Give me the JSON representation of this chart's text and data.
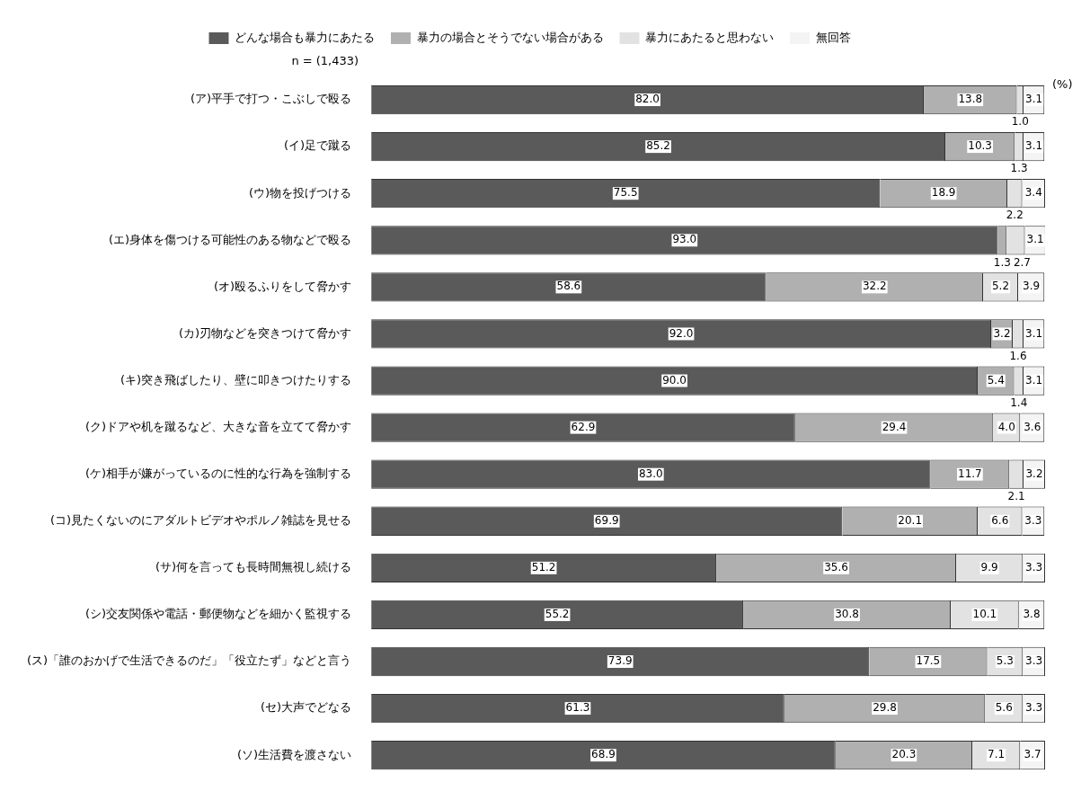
{
  "chart_data": {
    "type": "bar",
    "orientation": "horizontal",
    "stacked": true,
    "legend": "top",
    "grid": false,
    "tick_labels": "y",
    "xlim": [
      0,
      100
    ],
    "annotations": [
      "n = (1,433)",
      "(%)"
    ],
    "categories": [
      "(ア)平手で打つ・こぶしで殴る",
      "(イ)足で蹴る",
      "(ウ)物を投げつける",
      "(エ)身体を傷つける可能性のある物などで殴る",
      "(オ)殴るふりをして脅かす",
      "(カ)刃物などを突きつけて脅かす",
      "(キ)突き飛ばしたり、壁に叩きつけたりする",
      "(ク)ドアや机を蹴るなど、大きな音を立てて脅かす",
      "(ケ)相手が嫌がっているのに性的な行為を強制する",
      "(コ)見たくないのにアダルトビデオやポルノ雑誌を見せる",
      "(サ)何を言っても長時間無視し続ける",
      "(シ)交友関係や電話・郵便物などを細かく監視する",
      "(ス)「誰のおかげで生活できるのだ」「役立たず」などと言う",
      "(セ)大声でどなる",
      "(ソ)生活費を渡さない"
    ],
    "series": [
      {
        "name": "どんな場合も暴力にあたる",
        "color": "#5a5a5a",
        "values": [
          82.0,
          85.2,
          75.5,
          93.0,
          58.6,
          92.0,
          90.0,
          62.9,
          83.0,
          69.9,
          51.2,
          55.2,
          73.9,
          61.3,
          68.9
        ],
        "value_labels": [
          "82.0",
          "85.2",
          "75.5",
          "93.0",
          "58.6",
          "92.0",
          "90.0",
          "62.9",
          "83.0",
          "69.9",
          "51.2",
          "55.2",
          "73.9",
          "61.3",
          "68.9"
        ]
      },
      {
        "name": "暴力の場合とそうでない場合がある",
        "color": "#b0b0b0",
        "values": [
          13.8,
          10.3,
          18.9,
          1.3,
          32.2,
          3.2,
          5.4,
          29.4,
          11.7,
          20.1,
          35.6,
          30.8,
          17.5,
          29.8,
          20.3
        ],
        "value_labels": [
          "13.8",
          "10.3",
          "18.9",
          "1.3",
          "32.2",
          "3.2",
          "5.4",
          "29.4",
          "11.7",
          "20.1",
          "35.6",
          "30.8",
          "17.5",
          "29.8",
          "20.3"
        ]
      },
      {
        "name": "暴力にあたると思わない",
        "color": "#e2e2e2",
        "values": [
          1.0,
          1.3,
          2.2,
          2.7,
          5.2,
          1.6,
          1.4,
          4.0,
          2.1,
          6.6,
          9.9,
          10.1,
          5.3,
          5.6,
          7.1
        ],
        "value_labels": [
          "1.0",
          "1.3",
          "2.2",
          "2.7",
          "5.2",
          "1.6",
          "1.4",
          "4.0",
          "2.1",
          "6.6",
          "9.9",
          "10.1",
          "5.3",
          "5.6",
          "7.1"
        ]
      },
      {
        "name": "無回答",
        "color": "#f4f4f4",
        "values": [
          3.1,
          3.1,
          3.4,
          3.1,
          3.9,
          3.1,
          3.1,
          3.6,
          3.2,
          3.3,
          3.3,
          3.8,
          3.3,
          3.3,
          3.7
        ],
        "value_labels": [
          "3.1",
          "3.1",
          "3.4",
          "3.1",
          "3.9",
          "3.1",
          "3.1",
          "3.6",
          "3.2",
          "3.3",
          "3.3",
          "3.8",
          "3.3",
          "3.3",
          "3.7"
        ]
      }
    ]
  }
}
